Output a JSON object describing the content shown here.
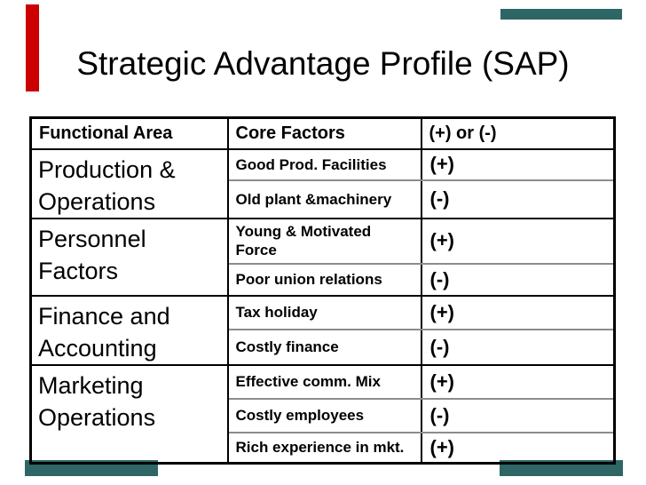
{
  "slide": {
    "title": "Strategic Advantage Profile (SAP)"
  },
  "decor": {
    "accent_red": "#cc0000",
    "accent_teal": "#2e6666"
  },
  "table": {
    "headers": [
      "Functional Area",
      "Core Factors",
      "(+) or (-)"
    ],
    "groups": [
      {
        "area": "Production &\nOperations",
        "factors": [
          {
            "factor": "Good Prod. Facilities",
            "sign": "(+)"
          },
          {
            "factor": "Old plant &machinery",
            "sign": "(-)"
          }
        ]
      },
      {
        "area": "Personnel\nFactors",
        "factors": [
          {
            "factor": "Young & Motivated\nForce",
            "sign": "(+)"
          },
          {
            "factor": "Poor union relations",
            "sign": "(-)"
          }
        ]
      },
      {
        "area": "Finance and\nAccounting",
        "factors": [
          {
            "factor": "Tax holiday",
            "sign": "(+)"
          },
          {
            "factor": "Costly finance",
            "sign": "(-)"
          }
        ]
      },
      {
        "area": "Marketing\nOperations",
        "factors": [
          {
            "factor": "Effective comm. Mix",
            "sign": "(+)"
          },
          {
            "factor": "Costly employees",
            "sign": "(-)"
          },
          {
            "factor": "Rich experience in mkt.",
            "sign": "(+)"
          }
        ]
      }
    ]
  }
}
